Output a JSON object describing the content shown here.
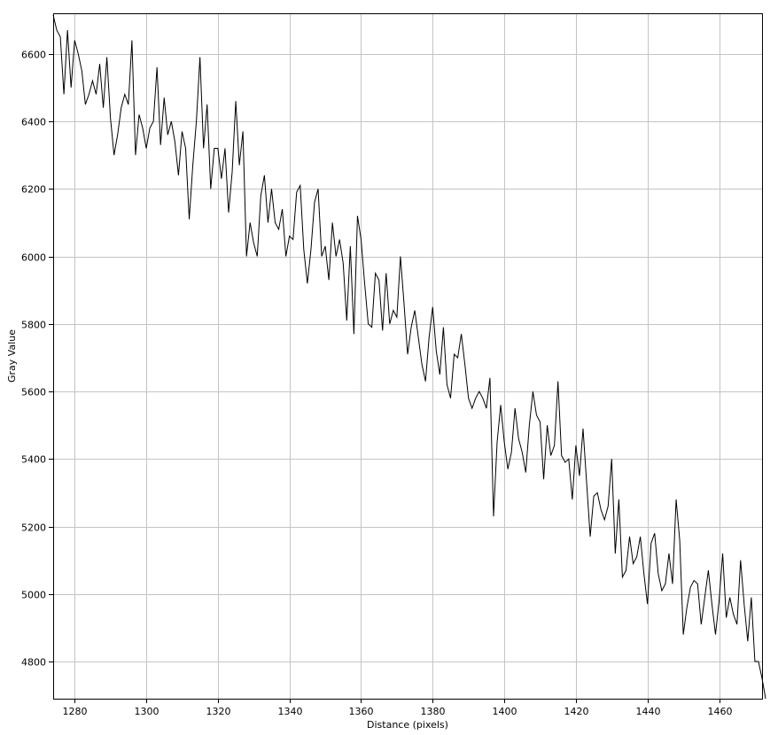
{
  "chart_data": {
    "type": "line",
    "title": "",
    "xlabel": "Distance (pixels)",
    "ylabel": "Gray Value",
    "xlim": [
      1274,
      1472
    ],
    "ylim": [
      4690,
      6720
    ],
    "grid": true,
    "legend": "none",
    "line_color": "#000000",
    "xticks": [
      1280,
      1300,
      1320,
      1340,
      1360,
      1380,
      1400,
      1420,
      1440,
      1460
    ],
    "yticks": [
      4800,
      5000,
      5200,
      5400,
      5600,
      5800,
      6000,
      6200,
      6400,
      6600
    ],
    "series": [
      {
        "x_start": 1274,
        "x_step": 1,
        "values": [
          6715,
          6670,
          6650,
          6480,
          6670,
          6500,
          6640,
          6600,
          6550,
          6450,
          6480,
          6520,
          6480,
          6570,
          6440,
          6590,
          6410,
          6300,
          6360,
          6440,
          6480,
          6450,
          6640,
          6300,
          6420,
          6380,
          6320,
          6380,
          6400,
          6560,
          6330,
          6470,
          6360,
          6400,
          6340,
          6240,
          6370,
          6320,
          6110,
          6270,
          6400,
          6590,
          6320,
          6450,
          6200,
          6320,
          6320,
          6230,
          6320,
          6130,
          6250,
          6460,
          6270,
          6370,
          6000,
          6100,
          6040,
          6000,
          6180,
          6240,
          6100,
          6200,
          6100,
          6080,
          6140,
          6000,
          6060,
          6050,
          6190,
          6210,
          6020,
          5920,
          6020,
          6160,
          6200,
          6000,
          6030,
          5930,
          6100,
          6000,
          6050,
          5980,
          5810,
          6030,
          5770,
          6120,
          6050,
          5920,
          5800,
          5790,
          5950,
          5930,
          5780,
          5950,
          5800,
          5840,
          5820,
          6000,
          5860,
          5710,
          5790,
          5840,
          5760,
          5680,
          5630,
          5760,
          5850,
          5720,
          5650,
          5790,
          5620,
          5580,
          5710,
          5700,
          5770,
          5680,
          5580,
          5550,
          5580,
          5600,
          5580,
          5550,
          5640,
          5230,
          5450,
          5560,
          5450,
          5370,
          5420,
          5550,
          5460,
          5420,
          5360,
          5500,
          5600,
          5530,
          5510,
          5340,
          5500,
          5410,
          5440,
          5630,
          5410,
          5390,
          5400,
          5280,
          5440,
          5350,
          5490,
          5330,
          5170,
          5290,
          5300,
          5250,
          5220,
          5260,
          5400,
          5120,
          5280,
          5050,
          5070,
          5170,
          5090,
          5110,
          5170,
          5060,
          4970,
          5150,
          5180,
          5060,
          5010,
          5030,
          5120,
          5030,
          5280,
          5160,
          4880,
          4960,
          5020,
          5040,
          5030,
          4910,
          4990,
          5070,
          4970,
          4880,
          4980,
          5120,
          4930,
          4990,
          4940,
          4910,
          5100,
          4970,
          4860,
          4990,
          4800,
          4800,
          4750,
          4690
        ]
      }
    ]
  }
}
